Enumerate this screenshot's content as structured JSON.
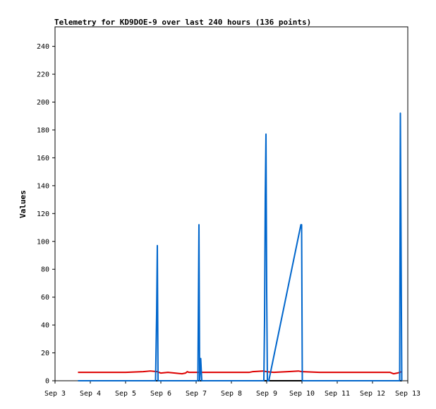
{
  "chart_data": {
    "type": "line",
    "title": "Telemetry for KD9DOE-9 over last 240 hours (136 points)",
    "xlabel": "",
    "ylabel": "Values",
    "xlim": [
      3.0,
      13.0
    ],
    "ylim": [
      0,
      254
    ],
    "x_ticks": [
      3,
      4,
      5,
      6,
      7,
      8,
      9,
      10,
      11,
      12,
      13
    ],
    "x_tick_labels": [
      "Sep 3",
      "Sep 4",
      "Sep 5",
      "Sep 6",
      "Sep 7",
      "Sep 8",
      "Sep 9",
      "Sep 10",
      "Sep 11",
      "Sep 12",
      "Sep 13"
    ],
    "y_ticks": [
      0,
      20,
      40,
      60,
      80,
      100,
      120,
      140,
      160,
      180,
      200,
      220,
      240
    ],
    "grid": false,
    "legend": "none",
    "series": [
      {
        "color": "#0066cc",
        "x": [
          3.65,
          5.85,
          5.88,
          5.9,
          5.92,
          5.94,
          7.05,
          7.08,
          7.1,
          7.13,
          7.16,
          8.92,
          8.94,
          8.96,
          8.98,
          9.0,
          9.02,
          9.06,
          9.97,
          9.99,
          10.01,
          12.77,
          12.79,
          12.81,
          12.83
        ],
        "y": [
          0,
          0,
          48,
          97,
          0,
          0,
          0,
          112,
          0,
          16,
          0,
          0,
          44,
          132,
          177,
          64,
          0,
          0,
          112,
          112,
          0,
          0,
          192,
          96,
          0
        ]
      },
      {
        "color": "#dd0000",
        "x": [
          3.65,
          4.5,
          5.0,
          5.5,
          5.7,
          5.9,
          6.0,
          6.2,
          6.4,
          6.6,
          6.7,
          6.75,
          6.8,
          7.0,
          7.5,
          8.0,
          8.5,
          8.6,
          8.9,
          9.0,
          9.2,
          9.6,
          9.9,
          10.0,
          10.5,
          11.0,
          11.5,
          12.0,
          12.5,
          12.6,
          12.7,
          12.83
        ],
        "y": [
          6,
          6,
          6,
          6.5,
          7,
          6.5,
          5.5,
          6,
          5.5,
          5,
          5.5,
          6.5,
          6,
          6,
          6,
          6,
          6,
          6.5,
          7,
          6.5,
          6,
          6.5,
          7,
          6.5,
          6,
          6,
          6,
          6,
          6,
          5,
          5.5,
          6.5
        ]
      },
      {
        "color": "#000000",
        "x": [
          3.65,
          12.83
        ],
        "y": [
          0,
          0
        ]
      }
    ]
  }
}
